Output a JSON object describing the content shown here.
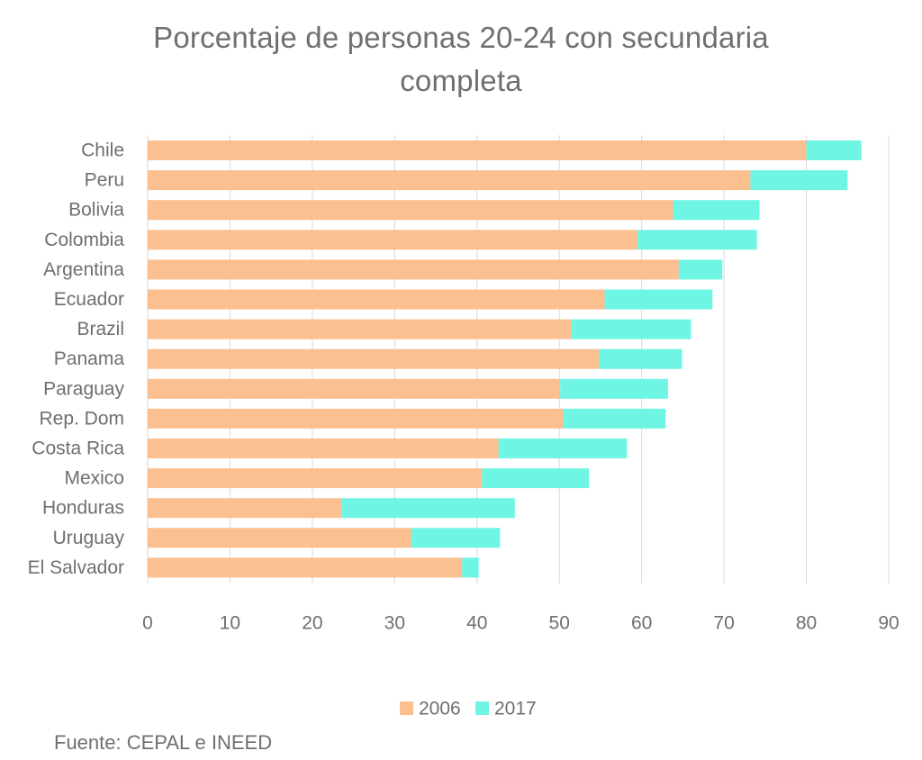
{
  "chart_data": {
    "type": "bar",
    "orientation": "horizontal",
    "stacked": true,
    "title_line1": "Porcentaje de personas 20-24 con secundaria",
    "title_line2": "completa",
    "categories": [
      "Chile",
      "Peru",
      "Bolivia",
      "Colombia",
      "Argentina",
      "Ecuador",
      "Brazil",
      "Panama",
      "Paraguay",
      "Rep. Dom",
      "Costa Rica",
      "Mexico",
      "Honduras",
      "Uruguay",
      "El Salvador"
    ],
    "series": [
      {
        "name": "2006",
        "color": "#fbbf90",
        "values": [
          80,
          73.2,
          63.8,
          59.5,
          64.5,
          55.5,
          51.4,
          54.8,
          50.1,
          50.5,
          42.6,
          40.6,
          23.5,
          32,
          38.2
        ]
      },
      {
        "name": "2017",
        "color": "#6ff5e4",
        "values": [
          6.7,
          11.8,
          10.5,
          14.5,
          5.3,
          13.1,
          14.6,
          10.1,
          13.1,
          12.4,
          15.6,
          13.0,
          21.1,
          10.8,
          2.0
        ]
      }
    ],
    "xlim": [
      0,
      90
    ],
    "xticks": [
      "0",
      "10",
      "20",
      "30",
      "40",
      "50",
      "60",
      "70",
      "80",
      "90"
    ],
    "grid": true,
    "legend_position": "bottom"
  },
  "source": "Fuente: CEPAL e INEED"
}
